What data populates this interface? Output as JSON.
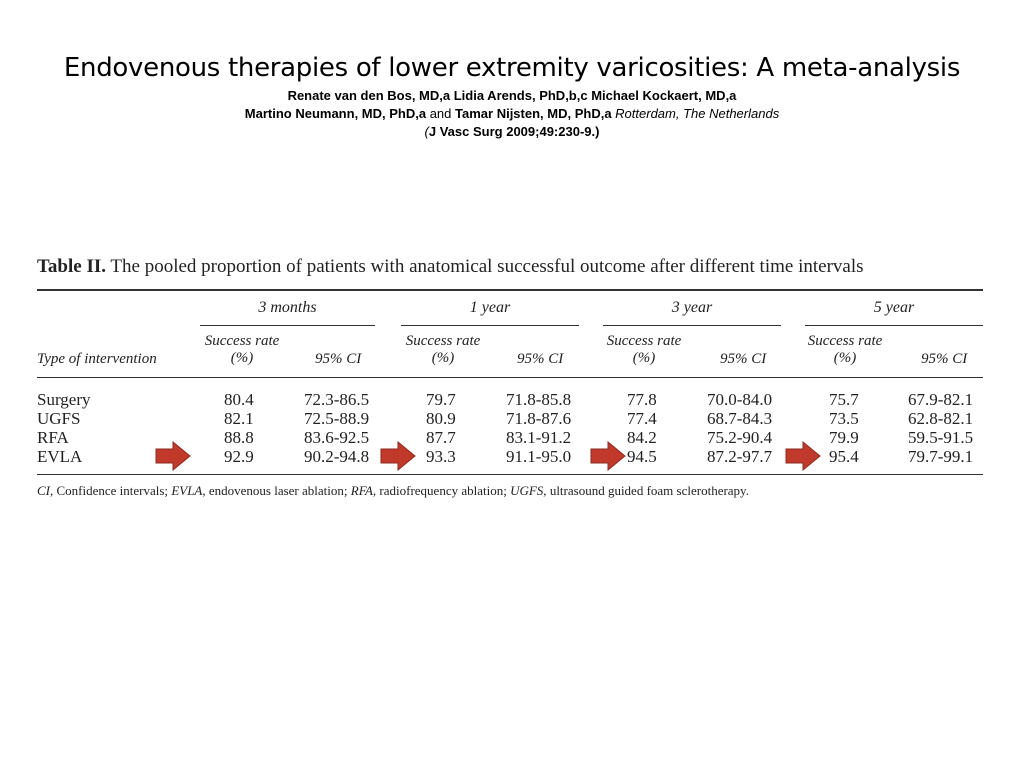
{
  "slide": {
    "title": "Endovenous therapies of lower extremity varicosities: A meta-analysis",
    "authors_line1": "Renate van den Bos, MD,a Lidia Arends, PhD,b,c Michael Kockaert, MD,a",
    "authors_line2_a": "Martino Neumann, MD, PhD,a",
    "authors_line2_and": "and",
    "authors_line2_b": "Tamar Nijsten, MD, PhD,a",
    "authors_line2_loc": "Rotterdam, The Netherlands",
    "citation_paren": "(",
    "citation": "J Vasc Surg 2009;49:230-9.)"
  },
  "table": {
    "label": "Table II.",
    "caption": "The pooled proportion of patients with anatomical successful outcome after different time intervals",
    "row_header": "Type of intervention",
    "groups": [
      "3 months",
      "1 year",
      "3 year",
      "5 year"
    ],
    "success_header_1": "Success rate",
    "success_header_2": "(%)",
    "ci_header": "95% CI",
    "rows": [
      {
        "type": "Surgery",
        "values": [
          "80.4",
          "72.3-86.5",
          "79.7",
          "71.8-85.8",
          "77.8",
          "70.0-84.0",
          "75.7",
          "67.9-82.1"
        ]
      },
      {
        "type": "UGFS",
        "values": [
          "82.1",
          "72.5-88.9",
          "80.9",
          "71.8-87.6",
          "77.4",
          "68.7-84.3",
          "73.5",
          "62.8-82.1"
        ]
      },
      {
        "type": "RFA",
        "values": [
          "88.8",
          "83.6-92.5",
          "87.7",
          "83.1-91.2",
          "84.2",
          "75.2-90.4",
          "79.9",
          "59.5-91.5"
        ]
      },
      {
        "type": "EVLA",
        "values": [
          "92.9",
          "90.2-94.8",
          "93.3",
          "91.1-95.0",
          "94.5",
          "87.2-97.7",
          "95.4",
          "79.7-99.1"
        ]
      }
    ],
    "footnote": {
      "ci_abbr": "CI,",
      "ci_text": "Confidence intervals;",
      "evla_abbr": "EVLA,",
      "evla_text": "endovenous laser ablation;",
      "rfa_abbr": "RFA,",
      "rfa_text": "radiofrequency ablation;",
      "ugfs_abbr": "UGFS,",
      "ugfs_text": "ultrasound guided foam sclerotherapy."
    }
  },
  "highlight_arrows": {
    "color": "#c0392b",
    "icon": "right-arrow-icon",
    "target_row": "EVLA"
  }
}
